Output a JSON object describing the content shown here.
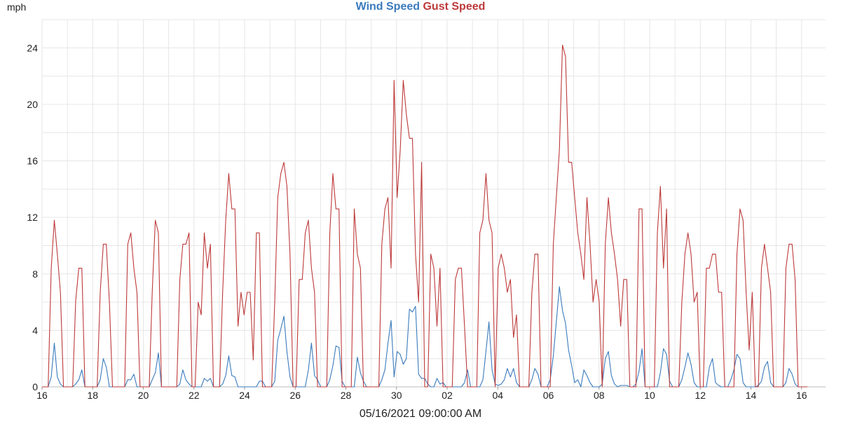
{
  "chart_data": {
    "type": "line",
    "ylabel": "mph",
    "ylim": [
      0,
      26
    ],
    "yticks": [
      0,
      4,
      8,
      12,
      16,
      20,
      24
    ],
    "grid": true,
    "legend_position": "top-center",
    "x_tick_labels": [
      "16",
      "18",
      "20",
      "22",
      "24",
      "26",
      "28",
      "30",
      "02",
      "04",
      "06",
      "08",
      "10",
      "12",
      "14",
      "16"
    ],
    "cursor_label": "05/16/2021 09:00:00 AM",
    "series": [
      {
        "name": "Wind Speed",
        "color": "#3a7bbd",
        "values": [
          0,
          0,
          0,
          0.7,
          3.1,
          0.7,
          0.2,
          0,
          0,
          0,
          0,
          0.2,
          0.5,
          1.2,
          0,
          0,
          0,
          0,
          0,
          0.5,
          2,
          1.4,
          0,
          0,
          0,
          0,
          0,
          0,
          0.5,
          0.5,
          0.9,
          0,
          0,
          0,
          0,
          0,
          0.5,
          1,
          2.4,
          0,
          0,
          0,
          0,
          0,
          0,
          0.2,
          1.2,
          0.5,
          0.2,
          0,
          0,
          0,
          0,
          0.6,
          0.4,
          0.6,
          0,
          0,
          0,
          0.2,
          0.8,
          2.2,
          0.8,
          0.7,
          0,
          0,
          0,
          0,
          0,
          0,
          0,
          0.4,
          0.4,
          0,
          0,
          0,
          0.4,
          3.3,
          4.1,
          5,
          2.5,
          0.7,
          0,
          0,
          0,
          0,
          0,
          1.2,
          3.1,
          0.8,
          0.5,
          0,
          0,
          0,
          0.5,
          1.5,
          2.9,
          2.8,
          0.4,
          0,
          0,
          0,
          0,
          2.1,
          1,
          0.4,
          0,
          0,
          0,
          0,
          0,
          0.5,
          1.2,
          3.1,
          4.7,
          0.7,
          2.5,
          2.3,
          1.6,
          2,
          5.5,
          5.3,
          5.7,
          0.9,
          0.6,
          0.6,
          0.2,
          0,
          0,
          0.6,
          0.2,
          0.3,
          0,
          0,
          0,
          0,
          0,
          0,
          0.3,
          1.2,
          0,
          0,
          0,
          0,
          0.5,
          2.5,
          4.6,
          1.2,
          0.2,
          0.1,
          0.2,
          0.5,
          1.3,
          0.7,
          1.3,
          0.3,
          0,
          0,
          0,
          0,
          0.5,
          1.3,
          0.9,
          0,
          0,
          0,
          0.5,
          2.2,
          4.6,
          7.1,
          5.4,
          4.5,
          2.6,
          1.5,
          0.3,
          0.5,
          0,
          1.2,
          0.8,
          0.3,
          0,
          0,
          0,
          0.2,
          2,
          2.5,
          0.8,
          0.2,
          0,
          0.1,
          0.1,
          0.1,
          0,
          0,
          0.2,
          1.1,
          2.7,
          0,
          0,
          0,
          0,
          0,
          1,
          2.7,
          2.3,
          0.4,
          0,
          0,
          0,
          0.5,
          1.4,
          2.4,
          1.6,
          0.3,
          0,
          0,
          0,
          0,
          1.4,
          2,
          0.3,
          0.1,
          0,
          0,
          0,
          0.5,
          1.2,
          2.3,
          2,
          0.3,
          0,
          0,
          0,
          0,
          0.1,
          0.4,
          1.4,
          1.8,
          0.3,
          0,
          0,
          0,
          0,
          0.3,
          1.3,
          0.9,
          0.2,
          0,
          0,
          0,
          0
        ]
      },
      {
        "name": "Gust Speed",
        "color": "#bd3a3a",
        "values": [
          0,
          0,
          0,
          8.4,
          11.8,
          9.4,
          6.7,
          0,
          0,
          0,
          0,
          6.1,
          8.4,
          8.4,
          0,
          0,
          0,
          0,
          0,
          6.7,
          10.1,
          10.1,
          6,
          0,
          0,
          0,
          0,
          0,
          10.1,
          10.9,
          8.4,
          6.7,
          0,
          0,
          0,
          0,
          6.7,
          11.8,
          10.9,
          0,
          0,
          0,
          0,
          0,
          0,
          7.6,
          10.1,
          10.1,
          10.9,
          0,
          0,
          6,
          5.1,
          10.9,
          8.4,
          10.1,
          0,
          0,
          0,
          6.7,
          11.8,
          15.1,
          12.6,
          12.6,
          4.3,
          6.7,
          5.1,
          6.7,
          6.7,
          1.9,
          10.9,
          10.9,
          0,
          0,
          0,
          0,
          6,
          13.4,
          15.1,
          15.9,
          14.2,
          9.4,
          0,
          0,
          7.6,
          7.6,
          10.9,
          11.8,
          8.4,
          6.7,
          0,
          0,
          0,
          0,
          10.9,
          15.1,
          12.6,
          12.6,
          0,
          0,
          0,
          0,
          12.6,
          9.4,
          8.4,
          0,
          0,
          0,
          0,
          0,
          0,
          10.1,
          12.6,
          13.4,
          8.4,
          21.7,
          13.4,
          16.8,
          21.7,
          19.3,
          17.6,
          17.6,
          9.4,
          6,
          15.9,
          0,
          0,
          9.4,
          8.4,
          4.3,
          8.4,
          0,
          0,
          0,
          0,
          7.6,
          8.4,
          8.4,
          4.3,
          0,
          0,
          0,
          0,
          10.9,
          11.8,
          15.1,
          11.8,
          10.9,
          0,
          8.4,
          9.4,
          8.4,
          6.7,
          7.6,
          3.5,
          5.1,
          0,
          0,
          0,
          0,
          6.7,
          9.4,
          9.4,
          0,
          0,
          0,
          0,
          10.1,
          13.4,
          16.8,
          24.2,
          23.4,
          15.9,
          15.9,
          13.4,
          10.9,
          9.4,
          7.6,
          13.4,
          10.1,
          6,
          7.6,
          6,
          0,
          10.1,
          13.4,
          10.9,
          9.4,
          7.6,
          4.3,
          7.6,
          7.6,
          0,
          0,
          0,
          12.6,
          12.6,
          0,
          0,
          0,
          0,
          10.9,
          14.2,
          8.4,
          12.6,
          0,
          0,
          0,
          0,
          6,
          9.4,
          10.9,
          9.4,
          6,
          6.7,
          0,
          0,
          8.4,
          8.4,
          9.4,
          9.4,
          6.7,
          6.7,
          0,
          0,
          0,
          0,
          9.4,
          12.6,
          11.8,
          6.7,
          2.6,
          6.7,
          0,
          0,
          8.4,
          10.1,
          8.4,
          6.7,
          0,
          0,
          0,
          0,
          8.4,
          10.1,
          10.1,
          7.6,
          0,
          0,
          0,
          0
        ]
      }
    ]
  }
}
